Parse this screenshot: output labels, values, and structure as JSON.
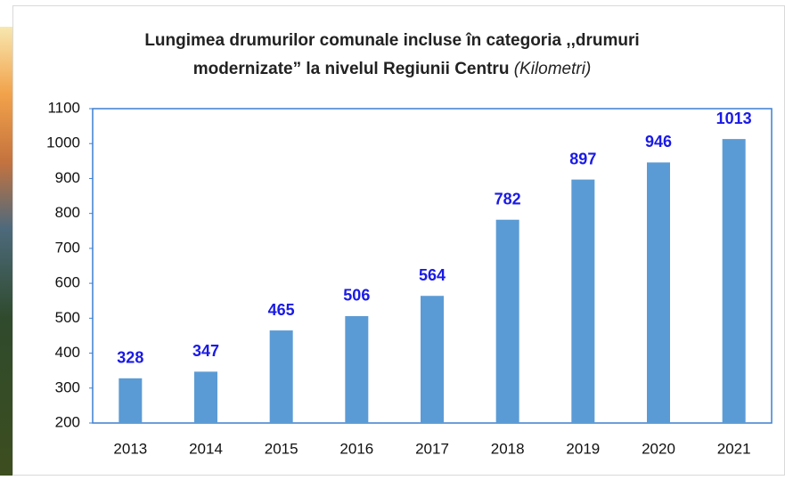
{
  "chart_data": {
    "type": "bar",
    "title": [
      "Lungimea drumurilor comunale incluse în categoria ,,drumuri",
      "modernizate” la nivelul Regiunii Centru"
    ],
    "unit": "(Kilometri)",
    "categories": [
      "2013",
      "2014",
      "2015",
      "2016",
      "2017",
      "2018",
      "2019",
      "2020",
      "2021"
    ],
    "values": [
      328,
      347,
      465,
      506,
      564,
      782,
      897,
      946,
      1013
    ],
    "color": "#5b9bd5",
    "ylim": [
      200,
      1100
    ],
    "yticks": [
      200,
      300,
      400,
      500,
      600,
      700,
      800,
      900,
      1000,
      1100
    ],
    "grid": false
  }
}
